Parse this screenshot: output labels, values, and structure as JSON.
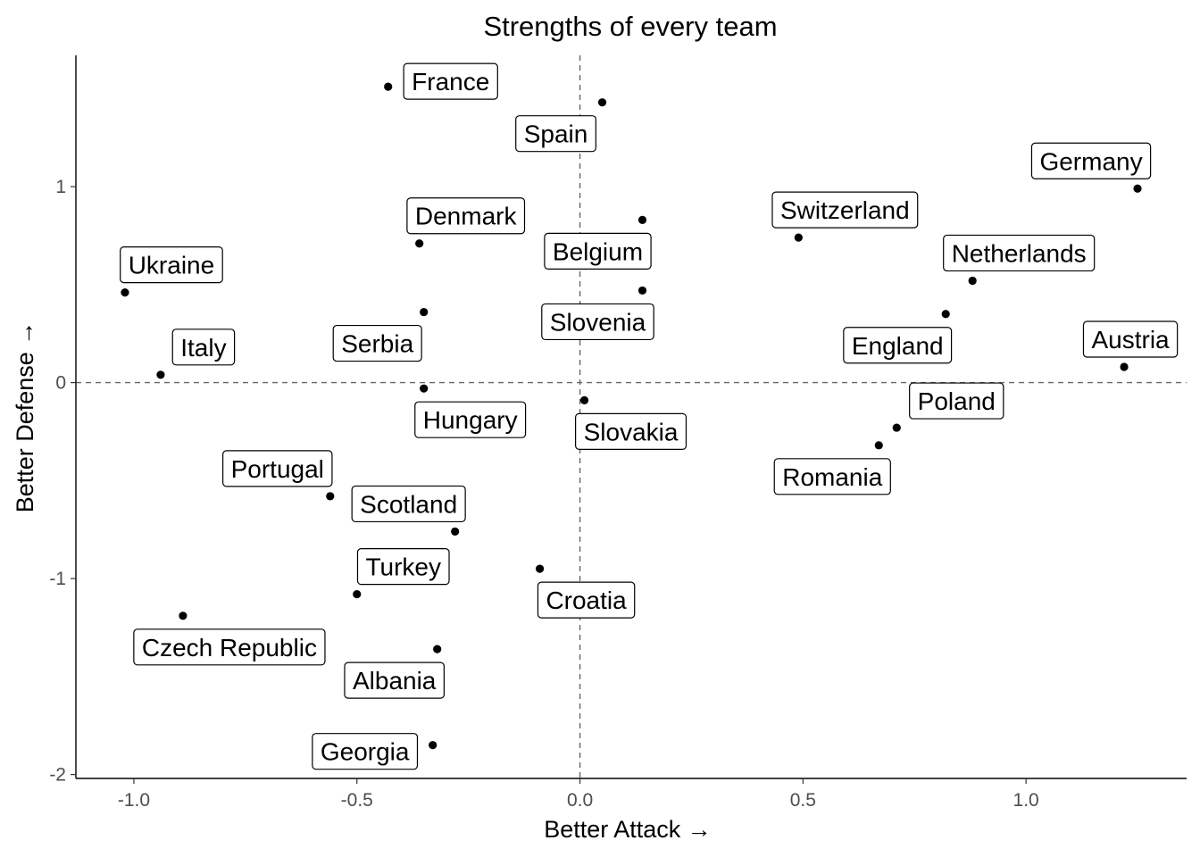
{
  "chart_data": {
    "type": "scatter",
    "title": "Strengths of every team",
    "xlabel": "Better Attack →",
    "ylabel": "Better Defense →",
    "xlim": [
      -1.13,
      1.36
    ],
    "ylim": [
      -2.02,
      1.67
    ],
    "xticks": [
      -1.0,
      -0.5,
      0.0,
      0.5,
      1.0
    ],
    "xtick_labels": [
      "-1.0",
      "-0.5",
      "0.0",
      "0.5",
      "1.0"
    ],
    "yticks": [
      -2,
      -1,
      0,
      1
    ],
    "ytick_labels": [
      "-2",
      "-1",
      "0",
      "1"
    ],
    "reference_lines": {
      "x": 0,
      "y": 0,
      "style": "dashed"
    },
    "grid": false,
    "point_color": "#000000",
    "points": [
      {
        "label": "France",
        "x": -0.43,
        "y": 1.51
      },
      {
        "label": "Spain",
        "x": 0.05,
        "y": 1.43
      },
      {
        "label": "Germany",
        "x": 1.25,
        "y": 0.99
      },
      {
        "label": "Denmark",
        "x": -0.36,
        "y": 0.71
      },
      {
        "label": "Belgium",
        "x": 0.14,
        "y": 0.83
      },
      {
        "label": "Switzerland",
        "x": 0.49,
        "y": 0.74
      },
      {
        "label": "Netherlands",
        "x": 0.88,
        "y": 0.52
      },
      {
        "label": "Ukraine",
        "x": -1.02,
        "y": 0.46
      },
      {
        "label": "Slovenia",
        "x": 0.14,
        "y": 0.47
      },
      {
        "label": "Serbia",
        "x": -0.35,
        "y": 0.36
      },
      {
        "label": "England",
        "x": 0.82,
        "y": 0.35
      },
      {
        "label": "Italy",
        "x": -0.94,
        "y": 0.04
      },
      {
        "label": "Austria",
        "x": 1.22,
        "y": 0.08
      },
      {
        "label": "Hungary",
        "x": -0.35,
        "y": -0.03
      },
      {
        "label": "Slovakia",
        "x": 0.01,
        "y": -0.09
      },
      {
        "label": "Poland",
        "x": 0.71,
        "y": -0.23
      },
      {
        "label": "Romania",
        "x": 0.67,
        "y": -0.32
      },
      {
        "label": "Portugal",
        "x": -0.56,
        "y": -0.58
      },
      {
        "label": "Scotland",
        "x": -0.28,
        "y": -0.76
      },
      {
        "label": "Croatia",
        "x": -0.09,
        "y": -0.95
      },
      {
        "label": "Turkey",
        "x": -0.5,
        "y": -1.08
      },
      {
        "label": "Czech Republic",
        "x": -0.89,
        "y": -1.19
      },
      {
        "label": "Albania",
        "x": -0.32,
        "y": -1.36
      },
      {
        "label": "Georgia",
        "x": -0.33,
        "y": -1.85
      }
    ]
  }
}
